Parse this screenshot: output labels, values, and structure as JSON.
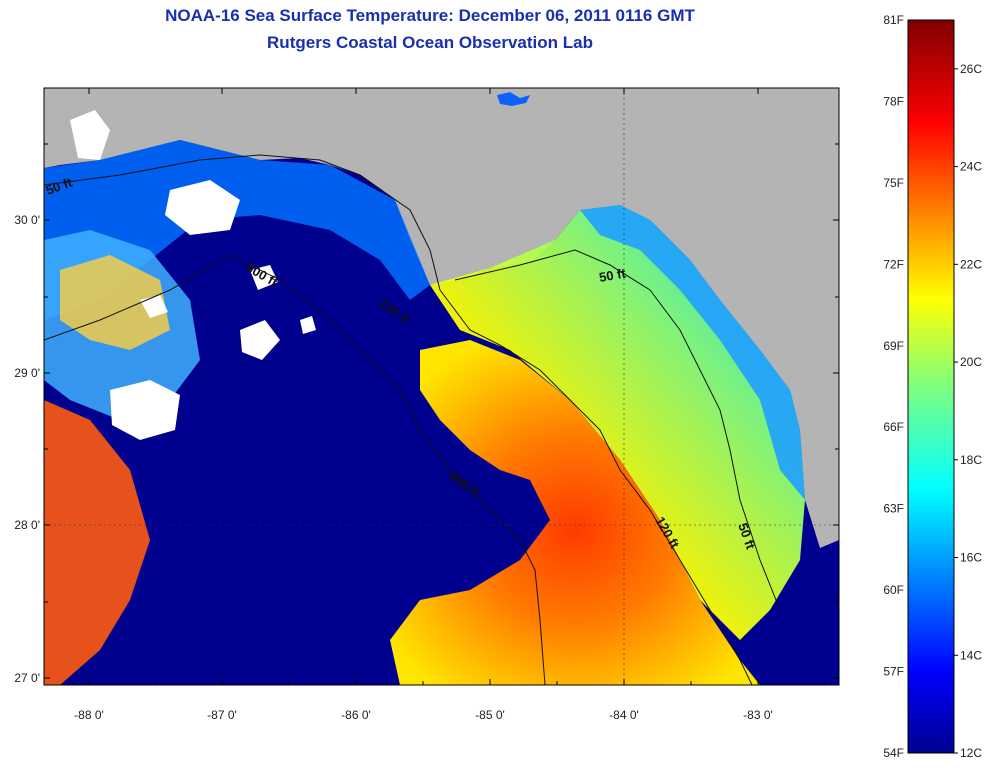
{
  "header": {
    "title": "NOAA-16 Sea Surface Temperature:  December 06, 2011 0116 GMT",
    "subtitle": "Rutgers Coastal Ocean Observation Lab"
  },
  "map": {
    "longitude_ticks": [
      "-88 0'",
      "-87 0'",
      "-86 0'",
      "-85 0'",
      "-84 0'",
      "-83 0'"
    ],
    "latitude_ticks": [
      "30 0'",
      "29 0'",
      "28 0'",
      "27 0'"
    ],
    "contour_labels": [
      "50 ft",
      "600 ft",
      "120 ft",
      "50 ft",
      "600 ft",
      "120 ft",
      "50 ft"
    ],
    "land_color": "#b4b4b4",
    "cloud_color": "#ffffff"
  },
  "colorbar": {
    "fahrenheit_labels": [
      "81F",
      "78F",
      "75F",
      "72F",
      "69F",
      "66F",
      "63F",
      "60F",
      "57F",
      "54F"
    ],
    "celsius_labels": [
      "26C",
      "24C",
      "22C",
      "20C",
      "18C",
      "16C",
      "14C",
      "12C"
    ],
    "colormap": "jet",
    "range_f": [
      54,
      81
    ],
    "range_c": [
      12,
      27
    ]
  }
}
